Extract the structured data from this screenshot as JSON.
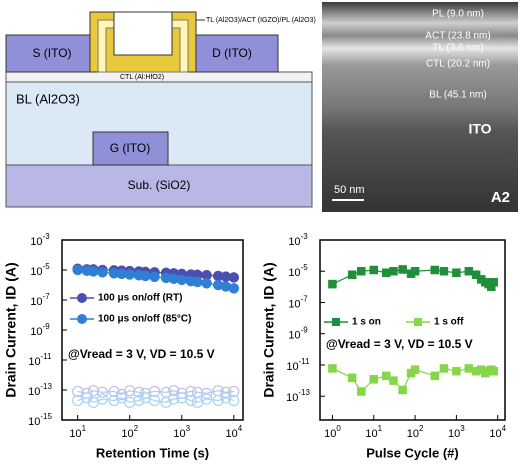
{
  "schematic": {
    "tl_stack": "TL (Al2O3)/ACT (IGZO)/PL (Al2O3)",
    "source": "S (ITO)",
    "drain": "D (ITO)",
    "ctl": "CTL (Al:HfO2)",
    "bl": "BL (Al2O3)",
    "gate": "G (ITO)",
    "substrate": "Sub. (SiO2)"
  },
  "tem": {
    "layers": [
      "PL (9.0 nm)",
      "ACT (23.8 nm)",
      "TL (3.6 nm)",
      "CTL (20.2 nm)",
      "BL (45.1 nm)",
      "ITO"
    ],
    "scale_bar": "50 nm",
    "sample": "A2"
  },
  "chart_data": [
    {
      "type": "scatter",
      "x_label": "Retention Time (s)",
      "y_label": "Drain Current, ID (A)",
      "annotation": "@Vread = 3 V, VD = 10.5 V",
      "log_x": true,
      "log_y": true,
      "marker": "circle",
      "xlim": [
        5,
        15000
      ],
      "ylim": [
        1e-15,
        0.001
      ],
      "xticks": [
        {
          "value": 10,
          "label": "10^1"
        },
        {
          "value": 100,
          "label": "10^2"
        },
        {
          "value": 1000,
          "label": "10^3"
        },
        {
          "value": 10000,
          "label": "10^4"
        }
      ],
      "yticks": [
        {
          "value": 0.001,
          "label": "10^-3"
        },
        {
          "value": 1e-05,
          "label": "10^-5"
        },
        {
          "value": 1e-07,
          "label": "10^-7"
        },
        {
          "value": 1e-09,
          "label": "10^-9"
        },
        {
          "value": 1e-11,
          "label": "10^-11"
        },
        {
          "value": 1e-13,
          "label": "10^-13"
        },
        {
          "value": 1e-15,
          "label": "10^-15"
        }
      ],
      "x": [
        10,
        15,
        20,
        30,
        50,
        70,
        100,
        150,
        200,
        300,
        500,
        700,
        1000,
        1500,
        2000,
        3000,
        5000,
        7000,
        10000
      ],
      "series": [
        {
          "name": "100 μs on/off (RT)",
          "color": "#4a4fb0",
          "off_color": "#b9c3ea",
          "values": [
            1.2e-05,
            1.1e-05,
            1.1e-05,
            1e-05,
            9.5e-06,
            9e-06,
            8.5e-06,
            8e-06,
            7.5e-06,
            7e-06,
            6.5e-06,
            6e-06,
            5.5e-06,
            5e-06,
            4.8e-06,
            4.5e-06,
            4e-06,
            3.6e-06,
            3.2e-06
          ],
          "off_values": [
            8e-14,
            6e-14,
            9e-14,
            7e-14,
            8e-14,
            5e-14,
            9e-14,
            7e-14,
            6e-14,
            8e-14,
            7e-14,
            9e-14,
            6e-14,
            8e-14,
            7e-14,
            6e-14,
            9e-14,
            7e-14,
            8e-14
          ]
        },
        {
          "name": "100 μs on/off (85°C)",
          "color": "#2f7fd4",
          "off_color": "#a9d2f5",
          "values": [
            1e-05,
            9e-06,
            8e-06,
            7e-06,
            6e-06,
            5.5e-06,
            5e-06,
            4.5e-06,
            4e-06,
            3.5e-06,
            3e-06,
            2.6e-06,
            2.2e-06,
            1.8e-06,
            1.6e-06,
            1.3e-06,
            1e-06,
            8e-07,
            6e-07
          ],
          "off_values": [
            2e-14,
            3e-14,
            1.5e-14,
            2.5e-14,
            2e-14,
            3e-14,
            1.5e-14,
            2e-14,
            3e-14,
            2e-14,
            1.5e-14,
            2.5e-14,
            3e-14,
            2e-14,
            1.5e-14,
            2.5e-14,
            2e-14,
            3e-14,
            2e-14
          ]
        }
      ]
    },
    {
      "type": "line",
      "x_label": "Pulse Cycle (#)",
      "y_label": "Drain Current, ID (A)",
      "annotation": "@Vread = 3 V, VD = 10.5 V",
      "log_x": true,
      "log_y": true,
      "marker": "square",
      "xlim": [
        0.5,
        15000
      ],
      "ylim": [
        3e-15,
        0.001
      ],
      "xticks": [
        {
          "value": 1,
          "label": "10^0"
        },
        {
          "value": 10,
          "label": "10^1"
        },
        {
          "value": 100,
          "label": "10^2"
        },
        {
          "value": 1000,
          "label": "10^3"
        },
        {
          "value": 10000,
          "label": "10^4"
        }
      ],
      "yticks": [
        {
          "value": 0.001,
          "label": "10^-3"
        },
        {
          "value": 1e-05,
          "label": "10^-5"
        },
        {
          "value": 1e-07,
          "label": "10^-7"
        },
        {
          "value": 1e-09,
          "label": "10^-9"
        },
        {
          "value": 1e-11,
          "label": "10^-11"
        },
        {
          "value": 1e-13,
          "label": "10^-13"
        }
      ],
      "x": [
        1,
        3,
        5,
        10,
        20,
        30,
        50,
        80,
        100,
        300,
        500,
        1000,
        2000,
        3000,
        4000,
        5000,
        6000,
        7000,
        8000
      ],
      "series": [
        {
          "name": "1 s on",
          "color": "#1f8f3a",
          "values": [
            1.5e-06,
            6e-06,
            1e-05,
            1.2e-05,
            8e-06,
            1e-05,
            1.3e-05,
            7e-06,
            1e-05,
            1.2e-05,
            1e-05,
            8e-06,
            1e-05,
            6e-06,
            3e-06,
            2e-06,
            1.5e-06,
            1e-06,
            2e-06
          ]
        },
        {
          "name": "1 s off",
          "color": "#86d64a",
          "values": [
            6e-12,
            1.5e-12,
            2e-13,
            1.2e-12,
            2e-12,
            1e-12,
            2.5e-13,
            3e-12,
            5e-12,
            2e-12,
            6e-12,
            4e-12,
            6e-12,
            4e-12,
            5e-12,
            3e-12,
            4e-12,
            5e-12,
            4e-12
          ]
        }
      ]
    }
  ]
}
